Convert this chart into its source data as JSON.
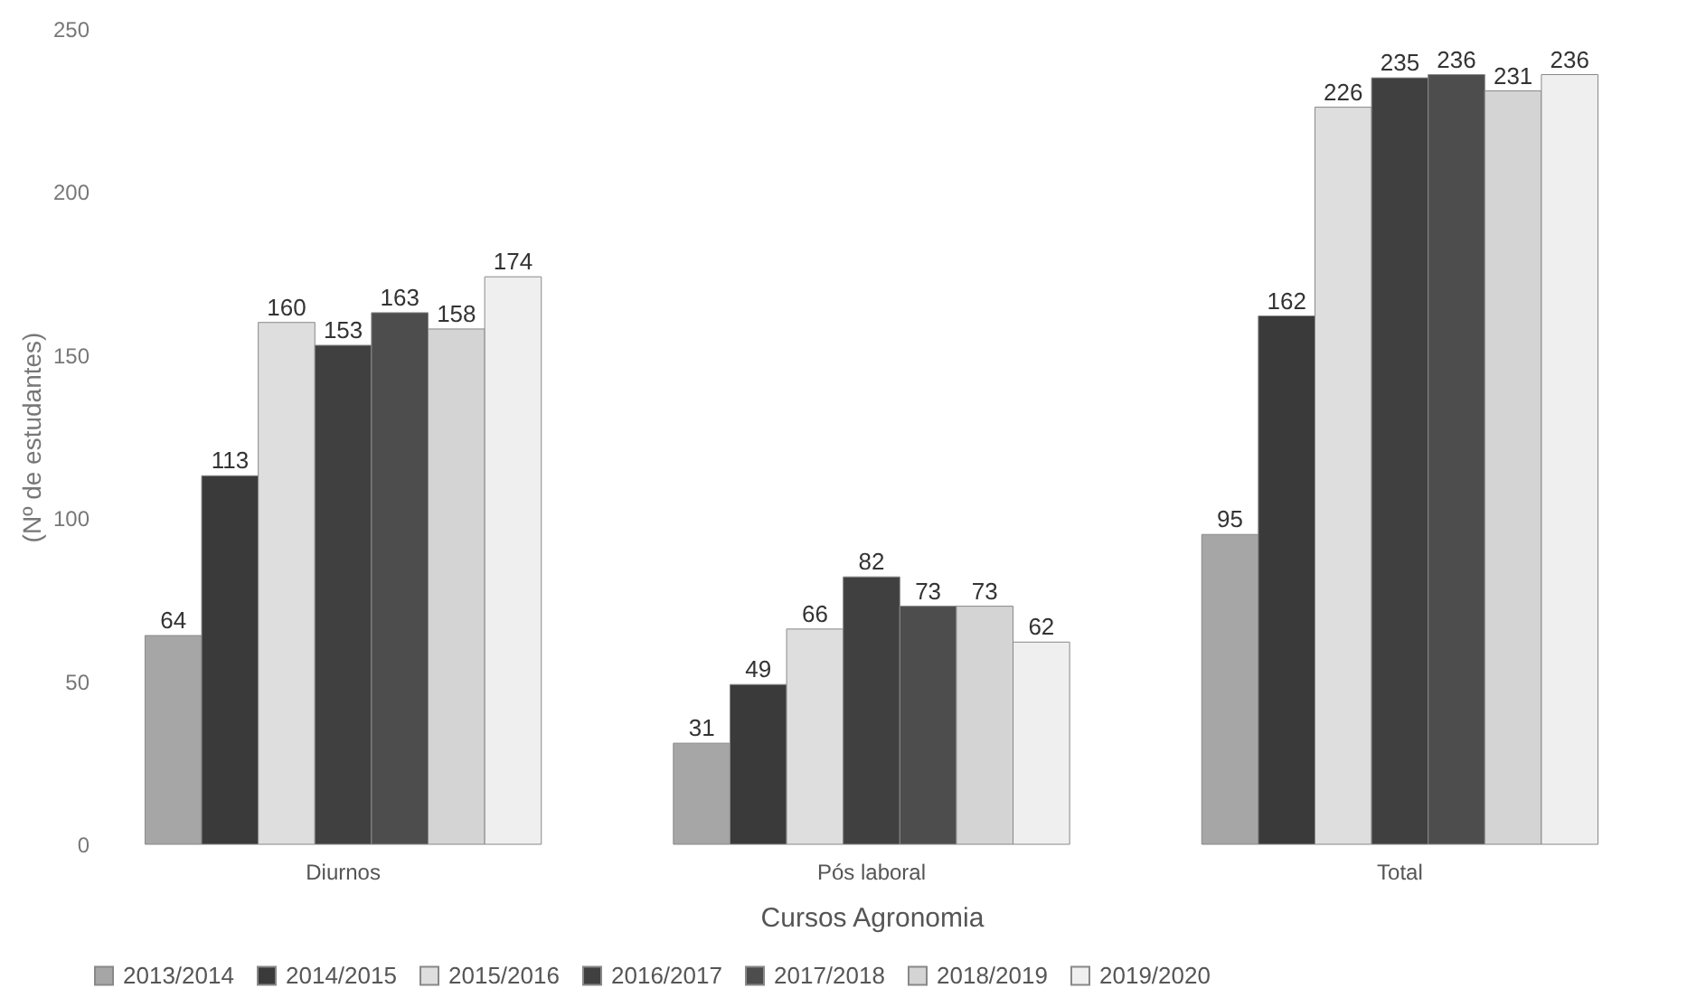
{
  "chart_data": {
    "type": "bar",
    "xlabel": "Cursos Agronomia",
    "ylabel": "(Nº de estudantes)",
    "categories": [
      "Diurnos",
      "Pós laboral",
      "Total"
    ],
    "series": [
      {
        "name": "2013/2014",
        "color": "#a6a6a6",
        "values": [
          64,
          31,
          95
        ]
      },
      {
        "name": "2014/2015",
        "color": "#3a3a3a",
        "values": [
          113,
          49,
          162
        ]
      },
      {
        "name": "2015/2016",
        "color": "#dedede",
        "values": [
          160,
          66,
          226
        ]
      },
      {
        "name": "2016/2017",
        "color": "#404040",
        "values": [
          153,
          82,
          235
        ]
      },
      {
        "name": "2017/2018",
        "color": "#4d4d4d",
        "values": [
          163,
          73,
          236
        ]
      },
      {
        "name": "2018/2019",
        "color": "#d4d4d4",
        "values": [
          158,
          73,
          231
        ]
      },
      {
        "name": "2019/2020",
        "color": "#efefef",
        "values": [
          174,
          62,
          236
        ]
      }
    ],
    "ylim": [
      0,
      250
    ],
    "yticks": [
      0,
      50,
      100,
      150,
      200,
      250
    ],
    "grid": false,
    "legend": "bottom",
    "data_labels": true
  }
}
